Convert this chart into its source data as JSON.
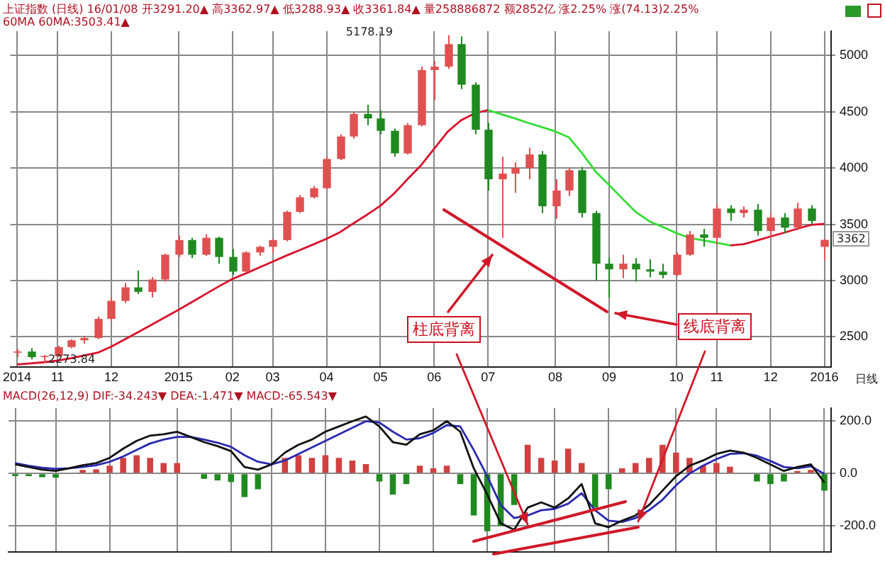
{
  "chart_data": [
    {
      "type": "candlestick",
      "title": "上证指数 (日线) 16/01/08 开3291.20▲ 高3362.97▲ 低3288.93▲ 收3361.84▲ 量258886872 额2852亿 涨2.25% 涨(74.13)2.25%",
      "subtitle": "60MA 60MA:3503.41▲",
      "categories": [
        "2014",
        null,
        null,
        "11",
        null,
        null,
        null,
        "12",
        null,
        null,
        null,
        null,
        "2015",
        null,
        null,
        null,
        "02",
        null,
        null,
        "03",
        null,
        null,
        null,
        "04",
        null,
        null,
        null,
        "05",
        null,
        null,
        null,
        "06",
        null,
        null,
        null,
        "07",
        null,
        null,
        null,
        null,
        "08",
        null,
        null,
        null,
        "09",
        null,
        null,
        null,
        null,
        "10",
        null,
        null,
        "11",
        null,
        null,
        null,
        "12",
        null,
        null,
        null,
        "2016"
      ],
      "ohlc": [
        [
          2360,
          2390,
          2320,
          2370
        ],
        [
          2370,
          2400,
          2300,
          2320
        ],
        [
          2320,
          2340,
          2273.84,
          2330
        ],
        [
          2330,
          2420,
          2320,
          2410
        ],
        [
          2410,
          2480,
          2400,
          2470
        ],
        [
          2470,
          2510,
          2440,
          2490
        ],
        [
          2490,
          2680,
          2480,
          2660
        ],
        [
          2660,
          2850,
          2640,
          2820
        ],
        [
          2820,
          2980,
          2800,
          2940
        ],
        [
          2940,
          3090,
          2880,
          2900
        ],
        [
          2900,
          3030,
          2850,
          3010
        ],
        [
          3010,
          3240,
          2990,
          3230
        ],
        [
          3230,
          3400,
          3210,
          3360
        ],
        [
          3360,
          3380,
          3200,
          3230
        ],
        [
          3230,
          3410,
          3220,
          3380
        ],
        [
          3380,
          3390,
          3150,
          3210
        ],
        [
          3210,
          3280,
          3050,
          3080
        ],
        [
          3080,
          3260,
          3070,
          3250
        ],
        [
          3250,
          3310,
          3220,
          3300
        ],
        [
          3300,
          3370,
          3250,
          3360
        ],
        [
          3360,
          3620,
          3350,
          3610
        ],
        [
          3610,
          3760,
          3600,
          3740
        ],
        [
          3740,
          3840,
          3730,
          3820
        ],
        [
          3820,
          4100,
          3810,
          4080
        ],
        [
          4080,
          4300,
          4070,
          4280
        ],
        [
          4280,
          4500,
          4260,
          4480
        ],
        [
          4480,
          4560,
          4380,
          4440
        ],
        [
          4440,
          4510,
          4300,
          4330
        ],
        [
          4330,
          4350,
          4100,
          4130
        ],
        [
          4130,
          4400,
          4120,
          4380
        ],
        [
          4380,
          4900,
          4370,
          4870
        ],
        [
          4870,
          4950,
          4600,
          4900
        ],
        [
          4900,
          5178.19,
          4880,
          5100
        ],
        [
          5100,
          5170,
          4700,
          4740
        ],
        [
          4740,
          4760,
          4300,
          4340
        ],
        [
          4340,
          4400,
          3800,
          3900
        ],
        [
          3900,
          4100,
          3380,
          3950
        ],
        [
          3950,
          4050,
          3780,
          4000
        ],
        [
          4000,
          4180,
          3900,
          4120
        ],
        [
          4120,
          4150,
          3600,
          3660
        ],
        [
          3660,
          3900,
          3550,
          3800
        ],
        [
          3800,
          4000,
          3750,
          3980
        ],
        [
          3980,
          4010,
          3560,
          3600
        ],
        [
          3600,
          3620,
          3000,
          3150
        ],
        [
          3150,
          3200,
          2850,
          3100
        ],
        [
          3100,
          3230,
          3020,
          3150
        ],
        [
          3150,
          3200,
          2990,
          3100
        ],
        [
          3100,
          3190,
          3030,
          3080
        ],
        [
          3080,
          3150,
          3020,
          3050
        ],
        [
          3050,
          3250,
          3040,
          3230
        ],
        [
          3230,
          3440,
          3220,
          3410
        ],
        [
          3410,
          3460,
          3300,
          3380
        ],
        [
          3380,
          3680,
          3320,
          3640
        ],
        [
          3640,
          3670,
          3530,
          3600
        ],
        [
          3600,
          3660,
          3560,
          3630
        ],
        [
          3630,
          3680,
          3400,
          3440
        ],
        [
          3440,
          3600,
          3380,
          3560
        ],
        [
          3560,
          3600,
          3420,
          3470
        ],
        [
          3470,
          3690,
          3450,
          3640
        ],
        [
          3640,
          3670,
          3500,
          3530
        ],
        [
          3300,
          3370,
          3180,
          3361.84
        ]
      ],
      "colors": [
        "#e05050",
        "#1f8a1f",
        "#e05050",
        "#e05050",
        "#e05050",
        "#e05050",
        "#e05050",
        "#e05050",
        "#e05050",
        "#1f8a1f",
        "#e05050",
        "#e05050",
        "#e05050",
        "#1f8a1f",
        "#e05050",
        "#1f8a1f",
        "#1f8a1f",
        "#e05050",
        "#e05050",
        "#e05050",
        "#e05050",
        "#e05050",
        "#e05050",
        "#e05050",
        "#e05050",
        "#e05050",
        "#1f8a1f",
        "#1f8a1f",
        "#1f8a1f",
        "#e05050",
        "#e05050",
        "#e05050",
        "#e05050",
        "#1f8a1f",
        "#1f8a1f",
        "#1f8a1f",
        "#e05050",
        "#e05050",
        "#e05050",
        "#1f8a1f",
        "#e05050",
        "#e05050",
        "#1f8a1f",
        "#1f8a1f",
        "#1f8a1f",
        "#e05050",
        "#1f8a1f",
        "#1f8a1f",
        "#1f8a1f",
        "#e05050",
        "#e05050",
        "#1f8a1f",
        "#e05050",
        "#1f8a1f",
        "#e05050",
        "#1f8a1f",
        "#e05050",
        "#1f8a1f",
        "#e05050",
        "#1f8a1f",
        "#e05050"
      ],
      "series": [
        {
          "type": "line",
          "color": "#d8102a",
          "values": [
            2255,
            2265,
            2275,
            2290,
            2310,
            2335,
            2360,
            2413,
            2478,
            2543,
            2608,
            2674,
            2741,
            2810,
            2880,
            2949,
            3014,
            3064,
            3117,
            3168,
            3221,
            3271,
            3320,
            3371,
            3430,
            3508,
            3584,
            3665,
            3771,
            3898,
            4021,
            4171,
            4322,
            4424,
            4485,
            4515,
            null,
            null,
            null,
            null,
            null,
            null,
            null,
            null,
            null,
            null,
            null,
            null,
            null,
            null,
            null,
            null,
            null,
            3312,
            3324,
            3357,
            3392,
            3425,
            3461,
            3495,
            3503.41
          ]
        },
        {
          "type": "line",
          "color": "#33dd33",
          "values": [
            null,
            null,
            null,
            null,
            null,
            null,
            null,
            null,
            null,
            null,
            null,
            null,
            null,
            null,
            null,
            null,
            null,
            null,
            null,
            null,
            null,
            null,
            null,
            null,
            null,
            null,
            null,
            null,
            null,
            null,
            null,
            null,
            null,
            null,
            null,
            4515,
            4476,
            4440,
            4400,
            4363,
            4325,
            4273,
            4130,
            3968,
            3849,
            3726,
            3608,
            3526,
            3476,
            3422,
            3378,
            3358,
            3336,
            3312,
            null,
            null,
            null,
            null,
            null,
            null,
            null
          ]
        }
      ],
      "ylim": [
        2230,
        5215
      ],
      "yticks": [
        {
          "value": 2500,
          "label": "2500"
        },
        {
          "value": 3000,
          "label": "3000"
        },
        {
          "value": 3500,
          "label": "3500"
        },
        {
          "value": 4000,
          "label": "4000"
        },
        {
          "value": 4500,
          "label": "4500"
        },
        {
          "value": 5000,
          "label": "5000"
        }
      ],
      "grid": true,
      "annotations": [
        "5178.19",
        "2273.84",
        "3362",
        "日线",
        "柱底背离",
        "线底背离"
      ]
    },
    {
      "type": "line",
      "title": "MACD(26,12,9) DIF:-34.243▼ DEA:-1.471▼ MACD:-65.543▼",
      "categories": [
        "2014",
        null,
        null,
        "11",
        null,
        null,
        null,
        "12",
        null,
        null,
        null,
        null,
        "2015",
        null,
        null,
        null,
        "02",
        null,
        null,
        "03",
        null,
        null,
        null,
        "04",
        null,
        null,
        null,
        "05",
        null,
        null,
        null,
        "06",
        null,
        null,
        null,
        "07",
        null,
        null,
        null,
        null,
        "08",
        null,
        null,
        null,
        "09",
        null,
        null,
        null,
        null,
        "10",
        null,
        null,
        "11",
        null,
        null,
        null,
        "12",
        null,
        null,
        null,
        "2016"
      ],
      "series": [
        {
          "type": "bar",
          "colors": [
            "#1f8a1f",
            "#1f8a1f",
            "#1f8a1f",
            "#1f8a1f",
            "#d04040",
            "#d04040",
            "#d04040",
            "#d04040",
            "#d04040",
            "#d04040",
            "#d04040",
            "#d04040",
            "#d04040",
            "#d04040",
            "#1f8a1f",
            "#1f8a1f",
            "#1f8a1f",
            "#1f8a1f",
            "#1f8a1f",
            "#d04040",
            "#d04040",
            "#d04040",
            "#d04040",
            "#d04040",
            "#d04040",
            "#d04040",
            "#d04040",
            "#1f8a1f",
            "#1f8a1f",
            "#1f8a1f",
            "#d04040",
            "#d04040",
            "#d04040",
            "#1f8a1f",
            "#1f8a1f",
            "#1f8a1f",
            "#1f8a1f",
            "#1f8a1f",
            "#d04040",
            "#d04040",
            "#d04040",
            "#d04040",
            "#d04040",
            "#1f8a1f",
            "#1f8a1f",
            "#d04040",
            "#d04040",
            "#d04040",
            "#d04040",
            "#d04040",
            "#d04040",
            "#d04040",
            "#d04040",
            "#d04040",
            "#d04040",
            "#1f8a1f",
            "#1f8a1f",
            "#1f8a1f",
            "#d04040",
            "#d04040",
            "#1f8a1f"
          ],
          "values": [
            -10,
            -10,
            -14,
            -16,
            0,
            14,
            16,
            30,
            60,
            70,
            60,
            40,
            40,
            0,
            -20,
            -26,
            -32,
            -90,
            -60,
            0,
            60,
            70,
            60,
            70,
            60,
            50,
            36,
            -30,
            -80,
            -40,
            30,
            20,
            30,
            -40,
            -160,
            -220,
            -200,
            -120,
            110,
            60,
            50,
            95,
            40,
            -130,
            -60,
            20,
            40,
            60,
            110,
            80,
            60,
            30,
            40,
            26,
            null,
            -30,
            -40,
            -30,
            10,
            14,
            -65.543
          ]
        },
        {
          "color": "#111111",
          "values": [
            35,
            25,
            15,
            10,
            20,
            32,
            40,
            60,
            95,
            125,
            145,
            150,
            160,
            140,
            120,
            105,
            86,
            25,
            15,
            35,
            80,
            110,
            130,
            160,
            180,
            200,
            218,
            180,
            120,
            110,
            150,
            165,
            200,
            160,
            20,
            -80,
            -190,
            -215,
            -130,
            -110,
            -130,
            -95,
            -40,
            -190,
            -205,
            -180,
            -160,
            -120,
            -65,
            -10,
            30,
            50,
            75,
            88,
            80,
            60,
            35,
            10,
            25,
            35,
            -34.243
          ]
        },
        {
          "color": "#2a2ab0",
          "values": [
            40,
            30,
            22,
            18,
            20,
            25,
            32,
            45,
            65,
            90,
            115,
            130,
            140,
            140,
            130,
            118,
            102,
            70,
            45,
            35,
            50,
            75,
            100,
            125,
            150,
            175,
            200,
            195,
            160,
            130,
            135,
            155,
            185,
            180,
            90,
            -10,
            -120,
            -170,
            -160,
            -140,
            -135,
            -115,
            -75,
            -140,
            -180,
            -185,
            -170,
            -140,
            -100,
            -45,
            0,
            30,
            55,
            75,
            78,
            68,
            48,
            25,
            20,
            28,
            -1.471
          ]
        }
      ],
      "ylim": [
        -300,
        250
      ],
      "yticks": [
        {
          "value": -200,
          "label": "-200.0"
        },
        {
          "value": 0,
          "label": "0.0"
        },
        {
          "value": 200,
          "label": "200.0"
        }
      ],
      "grid": true,
      "tick_labels": "y"
    }
  ]
}
